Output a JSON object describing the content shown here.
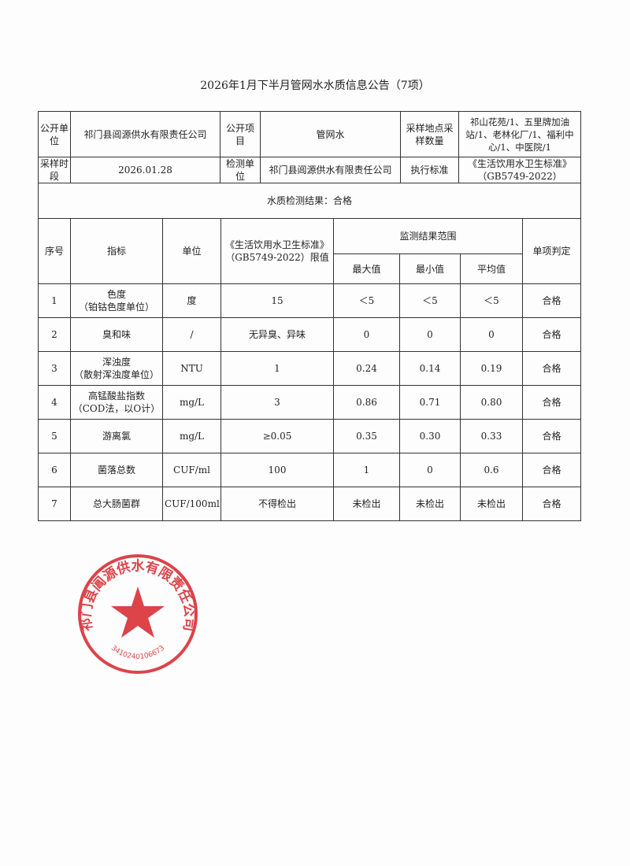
{
  "title": "2026年1月下半月管网水水质信息公告（7项）",
  "info": {
    "publisher_label": "公开单位",
    "publisher": "祁门县阊源供水有限责任公司",
    "item_label": "公开项目",
    "item": "管网水",
    "sites_label": "采样地点采样数量",
    "sites": "祁山花苑/1、五里牌加油站/1、老林化厂/1、福利中心/1、中医院/1",
    "period_label": "采样时段",
    "period": "2026.01.28",
    "lab_label": "检测单位",
    "lab": "祁门县阊源供水有限责任公司",
    "standard_label": "执行标准",
    "standard": "《生活饮用水卫生标准》（GB5749-2022）"
  },
  "result_summary": "水质检测结果：合格",
  "headers": {
    "no": "序号",
    "indicator": "指标",
    "unit": "单位",
    "limit": "《生活饮用水卫生标准》（GB5749-2022）限值",
    "range": "监测结果范围",
    "max": "最大值",
    "min": "最小值",
    "avg": "平均值",
    "verdict": "单项判定"
  },
  "rows": [
    {
      "no": "1",
      "name": "色度",
      "sub": "（铂钴色度单位）",
      "unit": "度",
      "limit": "15",
      "max": "＜5",
      "min": "＜5",
      "avg": "＜5",
      "verdict": "合格"
    },
    {
      "no": "2",
      "name": "臭和味",
      "sub": "",
      "unit": "/",
      "limit": "无异臭、异味",
      "max": "0",
      "min": "0",
      "avg": "0",
      "verdict": "合格"
    },
    {
      "no": "3",
      "name": "浑浊度",
      "sub": "（散射浑浊度单位）",
      "unit": "NTU",
      "limit": "1",
      "max": "0.24",
      "min": "0.14",
      "avg": "0.19",
      "verdict": "合格"
    },
    {
      "no": "4",
      "name": "高锰酸盐指数",
      "sub": "（COD法，以O计）",
      "unit": "mg/L",
      "limit": "3",
      "max": "0.86",
      "min": "0.71",
      "avg": "0.80",
      "verdict": "合格"
    },
    {
      "no": "5",
      "name": "游离氯",
      "sub": "",
      "unit": "mg/L",
      "limit": "≥0.05",
      "max": "0.35",
      "min": "0.30",
      "avg": "0.33",
      "verdict": "合格"
    },
    {
      "no": "6",
      "name": "菌落总数",
      "sub": "",
      "unit": "CUF/ml",
      "limit": "100",
      "max": "1",
      "min": "0",
      "avg": "0.6",
      "verdict": "合格"
    },
    {
      "no": "7",
      "name": "总大肠菌群",
      "sub": "",
      "unit": "CUF/100ml",
      "limit": "不得检出",
      "max": "未检出",
      "min": "未检出",
      "avg": "未检出",
      "verdict": "合格"
    }
  ],
  "stamp": {
    "text": "祁门县阊源供水有限责任公司",
    "code": "3410240106673",
    "color": "#d8232a"
  }
}
